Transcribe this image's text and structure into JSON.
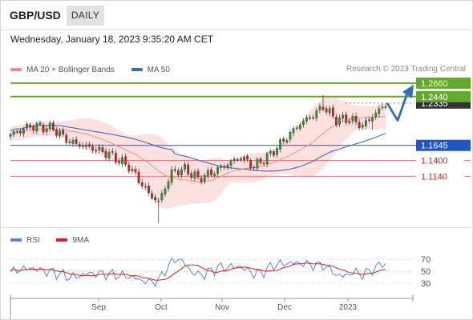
{
  "header": {
    "symbol": "GBP/USD",
    "timeframe": "DAILY",
    "datetime": "Wednesday, January 18, 2023 9:35:20 AM CET",
    "copyright": "Research © 2023 Trading Central"
  },
  "legend": {
    "ma20": "MA 20 + Bollinger Bands",
    "ma50": "MA 50",
    "rsi": "RSI",
    "ma9": "9MA"
  },
  "colors": {
    "bull": "#2a9d2a",
    "bear": "#dd1e1e",
    "band": "#fcd9d9",
    "ma20": "#f08b8b",
    "ma50": "#3d6eb5",
    "resistance": "#63a92a",
    "pivot": "#1e56c8",
    "support": "#ef7474",
    "arrow": "#2e6fb2",
    "rsi": "#5b84d6",
    "ma9": "#dd1e1e"
  },
  "chart_data": [
    {
      "type": "candlestick",
      "x": [
        "Sep",
        "Oct",
        "Nov",
        "Dec",
        "2023"
      ],
      "ylim": [
        1.035,
        1.275
      ],
      "series": [
        {
          "name": "MA 20 + Bollinger Bands"
        },
        {
          "name": "MA 50"
        }
      ],
      "levels": [
        {
          "value": 1.266,
          "label": "1.2660",
          "kind": "resistance"
        },
        {
          "value": 1.244,
          "label": "1.2440",
          "kind": "resistance"
        },
        {
          "value": 1.2335,
          "label": "1.2335",
          "kind": "last-price"
        },
        {
          "value": 1.1645,
          "label": "1.1645",
          "kind": "pivot"
        },
        {
          "value": 1.14,
          "label": "1.1400",
          "kind": "support"
        },
        {
          "value": 1.114,
          "label": "1.1140",
          "kind": "support"
        }
      ],
      "scenario": [
        "1.2335",
        "1.2050",
        "1.2660"
      ]
    },
    {
      "type": "line",
      "series": [
        {
          "name": "RSI"
        },
        {
          "name": "9MA"
        }
      ],
      "ylim": [
        10,
        85
      ],
      "yticks": [
        70,
        50,
        30
      ]
    }
  ]
}
